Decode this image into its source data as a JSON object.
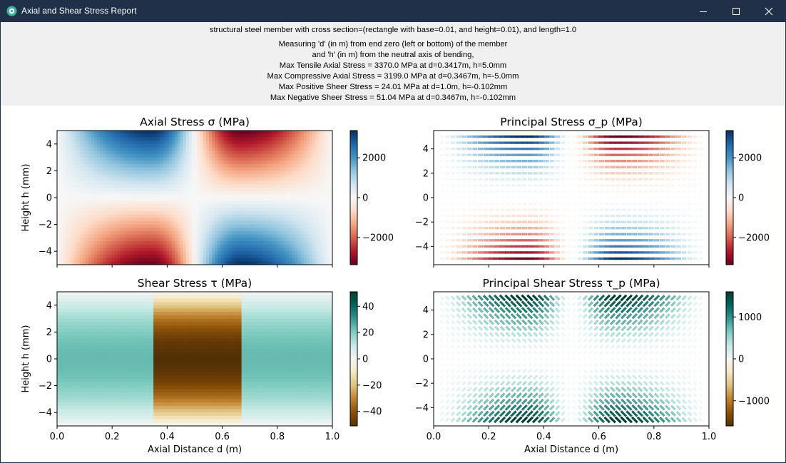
{
  "window": {
    "title": "Axial and Shear Stress Report",
    "app_icon": "gear-icon",
    "minimize_icon": "minimize-icon",
    "maximize_icon": "maximize-icon",
    "close_icon": "close-icon"
  },
  "header": {
    "line1": "structural steel member with cross section=(rectangle with base=0.01, and height=0.01), and length=1.0",
    "lines": [
      "Measuring 'd' (in m) from end zero (left or bottom) of the member",
      "and 'h' (in m) from the neutral axis of bending,",
      "Max Tensile Axial Stress = 3370.0 MPa at d=0.3417m, h=5.0mm",
      "Max Compressive Axial Stress = 3199.0 MPa at d=0.3467m, h=-5.0mm",
      "Max Positive Sheer Stress = 24.01 MPa at d=1.0m, h=-0.102mm",
      "Max Negative Sheer Stress = 51.04 MPa at d=0.3467m, h=-0.102mm"
    ]
  },
  "chart_data": [
    {
      "type": "heatmap",
      "title": "Axial Stress σ (MPa)",
      "xlabel": "",
      "ylabel": "Height h (mm)",
      "xlim": [
        0.0,
        1.0
      ],
      "ylim": [
        -5,
        5
      ],
      "yticks": [
        "4",
        "2",
        "0",
        "−2",
        "−4"
      ],
      "colormap": "RdBu",
      "colorbar_ticks": [
        "2000",
        "0",
        "−2000"
      ],
      "colorbar_range": [
        -3370,
        3370
      ],
      "regions": [
        {
          "d_range": [
            0.0,
            0.55
          ],
          "h_sign": "top",
          "sign": "positive",
          "peak_d": 0.3417,
          "peak": 3370
        },
        {
          "d_range": [
            0.0,
            0.55
          ],
          "h_sign": "bottom",
          "sign": "negative",
          "peak_d": 0.3467,
          "peak": -3199
        },
        {
          "d_range": [
            0.5,
            1.0
          ],
          "h_sign": "top",
          "sign": "negative",
          "peak_d": 0.67,
          "peak": -3199
        },
        {
          "d_range": [
            0.5,
            1.0
          ],
          "h_sign": "bottom",
          "sign": "positive",
          "peak_d": 0.67,
          "peak": 3370
        }
      ]
    },
    {
      "type": "scatter",
      "title": "Principal Stress σ_p (MPa)",
      "xlabel": "",
      "ylabel": "",
      "xlim": [
        0.0,
        1.0
      ],
      "ylim": [
        -5.5,
        5.5
      ],
      "yticks": [
        "4",
        "2",
        "0",
        "−2",
        "−4"
      ],
      "colormap": "RdBu",
      "colorbar_ticks": [
        "2000",
        "0",
        "−2000"
      ],
      "colorbar_range": [
        -3370,
        3370
      ]
    },
    {
      "type": "heatmap",
      "title": "Shear Stress τ (MPa)",
      "xlabel": "Axial Distance d (m)",
      "ylabel": "Height h (mm)",
      "xlim": [
        0.0,
        1.0
      ],
      "ylim": [
        -5,
        5
      ],
      "xticks": [
        "0.0",
        "0.2",
        "0.4",
        "0.6",
        "0.8",
        "1.0"
      ],
      "yticks": [
        "4",
        "2",
        "0",
        "−2",
        "−4"
      ],
      "colormap": "BrBG",
      "colorbar_ticks": [
        "40",
        "20",
        "0",
        "−20",
        "−40"
      ],
      "colorbar_range": [
        -51.04,
        51.04
      ],
      "segments": [
        {
          "d_range": [
            0.0,
            0.3467
          ],
          "max_at_center": 24.01
        },
        {
          "d_range": [
            0.3467,
            0.6667
          ],
          "max_at_center": -51.04
        },
        {
          "d_range": [
            0.6667,
            1.0
          ],
          "max_at_center": 24.01
        }
      ]
    },
    {
      "type": "scatter",
      "title": "Principal Shear Stress τ_p (MPa)",
      "xlabel": "Axial Distance d (m)",
      "ylabel": "",
      "xlim": [
        0.0,
        1.0
      ],
      "ylim": [
        -5.5,
        5.5
      ],
      "xticks": [
        "0.0",
        "0.2",
        "0.4",
        "0.6",
        "0.8",
        "1.0"
      ],
      "yticks": [
        "4",
        "2",
        "0",
        "−2",
        "−4"
      ],
      "colormap": "BrBG",
      "colorbar_ticks": [
        "1000",
        "0",
        "−1000"
      ],
      "colorbar_range": [
        -1600,
        1600
      ]
    }
  ]
}
